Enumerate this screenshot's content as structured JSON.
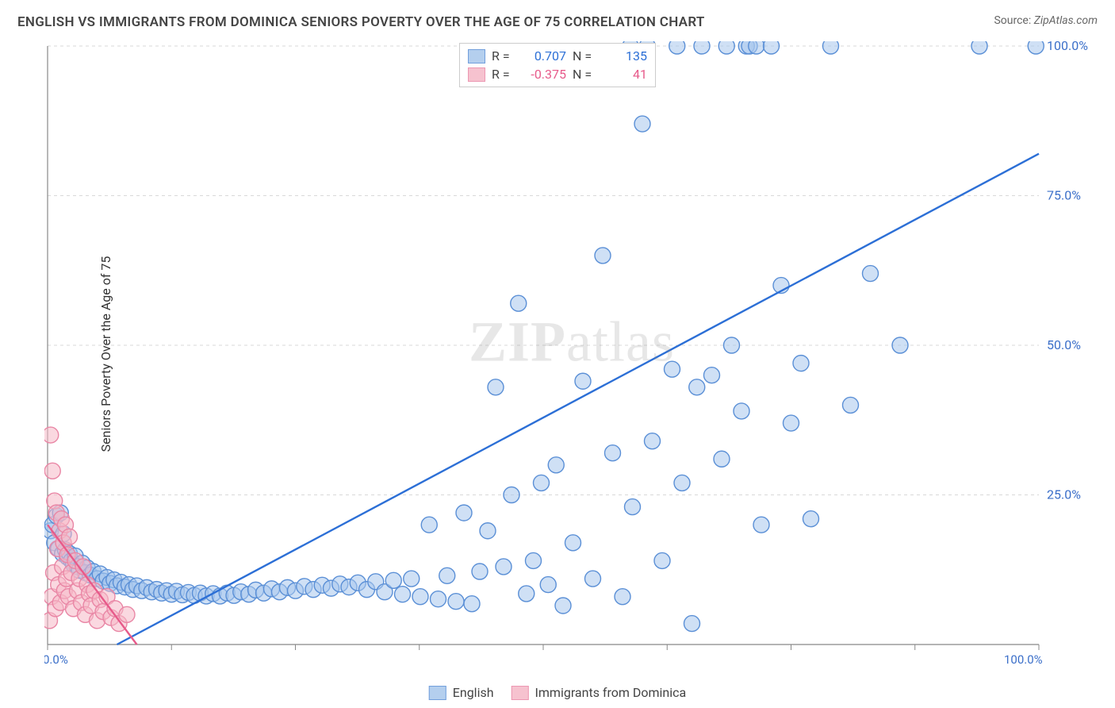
{
  "title": "ENGLISH VS IMMIGRANTS FROM DOMINICA SENIORS POVERTY OVER THE AGE OF 75 CORRELATION CHART",
  "source_label": "Source:",
  "source_value": "ZipAtlas.com",
  "ylabel": "Seniors Poverty Over the Age of 75",
  "watermark_prefix": "ZIP",
  "watermark_suffix": "atlas",
  "chart": {
    "type": "scatter",
    "xlim": [
      0,
      100
    ],
    "ylim": [
      0,
      100
    ],
    "xtick_step": 12.5,
    "ytick_step": 25,
    "xtick_labels_visible": {
      "0": "0.0%",
      "100": "100.0%"
    },
    "ytick_labels_visible": {
      "25": "25.0%",
      "50": "50.0%",
      "75": "75.0%",
      "100": "100.0%"
    },
    "grid_color": "#d9d9d9",
    "axis_color": "#888888",
    "tick_label_color": "#3b6fc9",
    "background_color": "#ffffff",
    "marker_radius": 10,
    "marker_stroke_width": 1.4,
    "series": [
      {
        "name": "English",
        "fill": "#a8c7ec",
        "stroke": "#5a8fd6",
        "fill_opacity": 0.55,
        "trend": {
          "x1": 7,
          "y1": 0,
          "x2": 100,
          "y2": 82,
          "color": "#2c6fd6",
          "width": 2.4
        },
        "stats": {
          "R": "0.707",
          "N": "135"
        },
        "points": [
          [
            0.3,
            19
          ],
          [
            0.5,
            20
          ],
          [
            0.7,
            17
          ],
          [
            0.9,
            21.5
          ],
          [
            1.1,
            16
          ],
          [
            1.3,
            22
          ],
          [
            1.5,
            15.2
          ],
          [
            1.6,
            18.5
          ],
          [
            1.8,
            15.8
          ],
          [
            2,
            14.6
          ],
          [
            2.2,
            15.2
          ],
          [
            2.4,
            14
          ],
          [
            2.6,
            13.4
          ],
          [
            2.8,
            14.8
          ],
          [
            3,
            13
          ],
          [
            3.2,
            12.4
          ],
          [
            3.5,
            13.6
          ],
          [
            3.8,
            12
          ],
          [
            4,
            12.8
          ],
          [
            4.3,
            11.6
          ],
          [
            4.6,
            12.2
          ],
          [
            5,
            11
          ],
          [
            5.3,
            11.8
          ],
          [
            5.6,
            10.6
          ],
          [
            6,
            11.2
          ],
          [
            6.3,
            10.2
          ],
          [
            6.7,
            10.8
          ],
          [
            7,
            9.8
          ],
          [
            7.4,
            10.4
          ],
          [
            7.8,
            9.6
          ],
          [
            8.2,
            10
          ],
          [
            8.6,
            9.2
          ],
          [
            9,
            9.8
          ],
          [
            9.5,
            9
          ],
          [
            10,
            9.5
          ],
          [
            10.5,
            8.8
          ],
          [
            11,
            9.2
          ],
          [
            11.5,
            8.6
          ],
          [
            12,
            9
          ],
          [
            12.5,
            8.4
          ],
          [
            13,
            8.9
          ],
          [
            13.6,
            8.3
          ],
          [
            14.2,
            8.7
          ],
          [
            14.8,
            8.2
          ],
          [
            15.4,
            8.6
          ],
          [
            16,
            8.1
          ],
          [
            16.7,
            8.5
          ],
          [
            17.4,
            8.1
          ],
          [
            18.1,
            8.6
          ],
          [
            18.8,
            8.2
          ],
          [
            19.5,
            8.8
          ],
          [
            20.3,
            8.4
          ],
          [
            21,
            9.1
          ],
          [
            21.8,
            8.6
          ],
          [
            22.6,
            9.3
          ],
          [
            23.4,
            8.8
          ],
          [
            24.2,
            9.5
          ],
          [
            25,
            9
          ],
          [
            25.9,
            9.7
          ],
          [
            26.8,
            9.2
          ],
          [
            27.7,
            9.9
          ],
          [
            28.6,
            9.4
          ],
          [
            29.5,
            10.1
          ],
          [
            30.4,
            9.6
          ],
          [
            31.3,
            10.3
          ],
          [
            32.2,
            9.2
          ],
          [
            33.1,
            10.5
          ],
          [
            34,
            8.8
          ],
          [
            34.9,
            10.7
          ],
          [
            35.8,
            8.4
          ],
          [
            36.7,
            11
          ],
          [
            37.6,
            8
          ],
          [
            38.5,
            20
          ],
          [
            39.4,
            7.6
          ],
          [
            40.3,
            11.5
          ],
          [
            41.2,
            7.2
          ],
          [
            42,
            22
          ],
          [
            42.8,
            6.8
          ],
          [
            43.6,
            12.2
          ],
          [
            44.4,
            19
          ],
          [
            45.2,
            43
          ],
          [
            46,
            13
          ],
          [
            46.8,
            25
          ],
          [
            47.5,
            57
          ],
          [
            48.3,
            8.5
          ],
          [
            49,
            14
          ],
          [
            49.8,
            27
          ],
          [
            50.5,
            10
          ],
          [
            51.3,
            30
          ],
          [
            52,
            6.5
          ],
          [
            53,
            17
          ],
          [
            54,
            44
          ],
          [
            55,
            11
          ],
          [
            56,
            65
          ],
          [
            57,
            32
          ],
          [
            58,
            8
          ],
          [
            58.8,
            100
          ],
          [
            59,
            23
          ],
          [
            60,
            87
          ],
          [
            60.5,
            100
          ],
          [
            61,
            34
          ],
          [
            62,
            14
          ],
          [
            63,
            46
          ],
          [
            63.5,
            100
          ],
          [
            64,
            27
          ],
          [
            65,
            3.5
          ],
          [
            65.5,
            43
          ],
          [
            66,
            100
          ],
          [
            67,
            45
          ],
          [
            68,
            31
          ],
          [
            68.5,
            100
          ],
          [
            69,
            50
          ],
          [
            70,
            39
          ],
          [
            70.5,
            100
          ],
          [
            70.8,
            100
          ],
          [
            71.5,
            100
          ],
          [
            72,
            20
          ],
          [
            73,
            100
          ],
          [
            74,
            60
          ],
          [
            75,
            37
          ],
          [
            76,
            47
          ],
          [
            77,
            21
          ],
          [
            79,
            100
          ],
          [
            81,
            40
          ],
          [
            83,
            62
          ],
          [
            86,
            50
          ],
          [
            94,
            100
          ],
          [
            99.7,
            100
          ]
        ]
      },
      {
        "name": "Immigrants from Dominica",
        "fill": "#f5b8c7",
        "stroke": "#e986a5",
        "fill_opacity": 0.55,
        "trend": {
          "x1": 0,
          "y1": 20,
          "x2": 9,
          "y2": 0,
          "color": "#e75a8a",
          "width": 2.4
        },
        "stats": {
          "R": "-0.375",
          "N": "41"
        },
        "points": [
          [
            0.2,
            4
          ],
          [
            0.3,
            35
          ],
          [
            0.4,
            8
          ],
          [
            0.5,
            29
          ],
          [
            0.6,
            12
          ],
          [
            0.7,
            24
          ],
          [
            0.8,
            6
          ],
          [
            0.9,
            22
          ],
          [
            1,
            16
          ],
          [
            1.1,
            10
          ],
          [
            1.2,
            19
          ],
          [
            1.3,
            7
          ],
          [
            1.4,
            21
          ],
          [
            1.5,
            13
          ],
          [
            1.6,
            17
          ],
          [
            1.7,
            9
          ],
          [
            1.8,
            20
          ],
          [
            1.9,
            11
          ],
          [
            2,
            15
          ],
          [
            2.1,
            8
          ],
          [
            2.2,
            18
          ],
          [
            2.4,
            12
          ],
          [
            2.6,
            6
          ],
          [
            2.8,
            14
          ],
          [
            3,
            9
          ],
          [
            3.2,
            11
          ],
          [
            3.4,
            7
          ],
          [
            3.6,
            13
          ],
          [
            3.8,
            5
          ],
          [
            4,
            10
          ],
          [
            4.2,
            8.5
          ],
          [
            4.4,
            6.5
          ],
          [
            4.7,
            9
          ],
          [
            5,
            4
          ],
          [
            5.3,
            7.5
          ],
          [
            5.6,
            5.5
          ],
          [
            6,
            8
          ],
          [
            6.4,
            4.5
          ],
          [
            6.8,
            6
          ],
          [
            7.2,
            3.5
          ],
          [
            8,
            5
          ]
        ]
      }
    ]
  },
  "stats_labels": {
    "R": "R =",
    "N": "N ="
  },
  "legend": {
    "items": [
      {
        "label": "English",
        "fill": "#a8c7ec",
        "stroke": "#5a8fd6"
      },
      {
        "label": "Immigrants from Dominica",
        "fill": "#f5b8c7",
        "stroke": "#e986a5"
      }
    ]
  }
}
